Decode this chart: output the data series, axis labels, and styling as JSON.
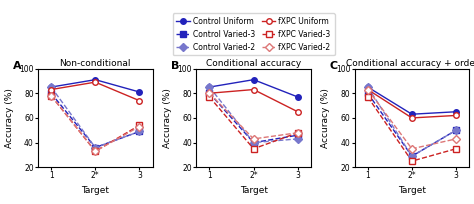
{
  "title_A": "Non-conditional",
  "title_B": "Conditional accuracy",
  "title_C": "Conditional accuracy + order",
  "xlabel": "Target",
  "ylabel": "Accuracy (%)",
  "xticklabels": [
    "1",
    "2*",
    "3"
  ],
  "ylim": [
    20,
    100
  ],
  "yticks": [
    20,
    40,
    60,
    80,
    100
  ],
  "blue_solid": "#2222bb",
  "blue_dashed": "#7777cc",
  "red_solid": "#cc2222",
  "red_dashed": "#dd7777",
  "panel_A": {
    "control_uniform": [
      85,
      91,
      81
    ],
    "control_varied3": [
      80,
      36,
      49
    ],
    "control_varied2": [
      85,
      36,
      49
    ],
    "fxpc_uniform": [
      83,
      89,
      74
    ],
    "fxpc_varied3": [
      78,
      33,
      54
    ],
    "fxpc_varied2": [
      78,
      33,
      53
    ]
  },
  "panel_B": {
    "control_uniform": [
      85,
      91,
      77
    ],
    "control_varied3": [
      80,
      40,
      46
    ],
    "control_varied2": [
      85,
      40,
      43
    ],
    "fxpc_uniform": [
      80,
      83,
      65
    ],
    "fxpc_varied3": [
      77,
      35,
      48
    ],
    "fxpc_varied2": [
      80,
      43,
      48
    ]
  },
  "panel_C": {
    "control_uniform": [
      85,
      63,
      65
    ],
    "control_varied3": [
      80,
      29,
      50
    ],
    "control_varied2": [
      85,
      29,
      50
    ],
    "fxpc_uniform": [
      83,
      60,
      62
    ],
    "fxpc_varied3": [
      77,
      25,
      35
    ],
    "fxpc_varied2": [
      83,
      35,
      43
    ]
  },
  "legend_entries": [
    "Control Uniform",
    "Control Varied-3",
    "Control Varied-2",
    "fXPC Uniform",
    "fXPC Varied-3",
    "fXPC Varied-2"
  ]
}
